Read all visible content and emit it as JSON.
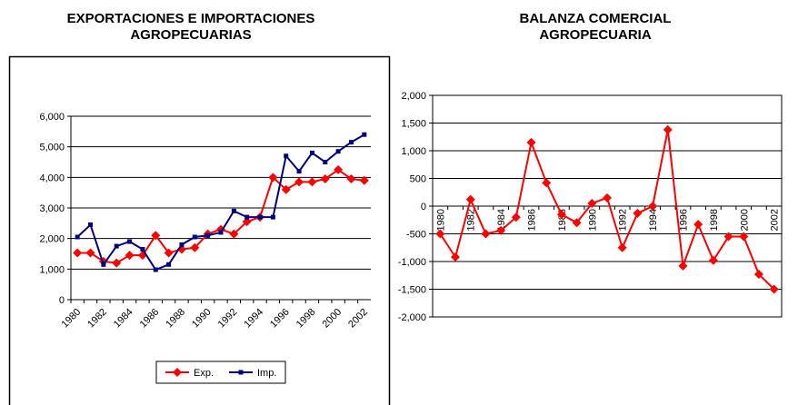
{
  "chart_data": [
    {
      "type": "line",
      "title": "EXPORTACIONES E IMPORTACIONES AGROPECUARIAS",
      "categories": [
        "1980",
        null,
        "1982",
        null,
        "1984",
        null,
        "1986",
        null,
        "1988",
        null,
        "1990",
        null,
        "1992",
        null,
        "1994",
        null,
        "1996",
        null,
        "1998",
        null,
        "2000",
        null,
        "2002"
      ],
      "series": [
        {
          "name": "Exp.",
          "color": "#ff0000",
          "marker": "diamond",
          "values": [
            1530,
            1530,
            1250,
            1200,
            1450,
            1450,
            2100,
            1530,
            1650,
            1700,
            2150,
            2300,
            2150,
            2550,
            2700,
            4000,
            3600,
            3850,
            3850,
            3950,
            4250,
            3950,
            3900
          ]
        },
        {
          "name": "Imp.",
          "color": "#000080",
          "marker": "square",
          "values": [
            2050,
            2450,
            1150,
            1750,
            1900,
            1650,
            980,
            1150,
            1800,
            2050,
            2100,
            2200,
            2900,
            2700,
            2700,
            2700,
            4700,
            4200,
            4800,
            4500,
            4850,
            5150,
            5400
          ]
        }
      ],
      "ylim": [
        0,
        6000
      ],
      "yticks": [
        0,
        {
          "value": 1000,
          "label": "1,000"
        },
        {
          "value": 2000,
          "label": "2,000"
        },
        {
          "value": 3000,
          "label": "3,000"
        },
        {
          "value": 4000,
          "label": "4,000"
        },
        {
          "value": 5000,
          "label": "5,000"
        },
        {
          "value": 6000,
          "label": "6,000"
        }
      ],
      "grid": true,
      "legend": "bottom"
    },
    {
      "type": "line",
      "title": "BALANZA COMERCIAL AGROPECUARIA",
      "categories": [
        "1980",
        null,
        "1982",
        null,
        "1984",
        null,
        "1986",
        null,
        "1988",
        null,
        "1990",
        null,
        "1992",
        null,
        "1994",
        null,
        "1996",
        null,
        "1998",
        null,
        "2000",
        null,
        "2002"
      ],
      "series": [
        {
          "color": "#ff0000",
          "marker": "diamond",
          "values": [
            -500,
            -920,
            120,
            -500,
            -440,
            -200,
            1150,
            420,
            -150,
            -300,
            50,
            150,
            -750,
            -130,
            0,
            1380,
            -1080,
            -330,
            -980,
            -550,
            -550,
            -1230,
            -1500
          ]
        }
      ],
      "ylim": [
        -2000,
        2000
      ],
      "yticks": [
        {
          "value": -2000,
          "label": "-2,000"
        },
        {
          "value": -1500,
          "label": "-1,500"
        },
        {
          "value": -1000,
          "label": "-1,000"
        },
        -500,
        0,
        500,
        {
          "value": 1000,
          "label": "1,000"
        },
        {
          "value": 1500,
          "label": "1,500"
        },
        {
          "value": 2000,
          "label": "2,000"
        }
      ],
      "grid": true
    }
  ]
}
